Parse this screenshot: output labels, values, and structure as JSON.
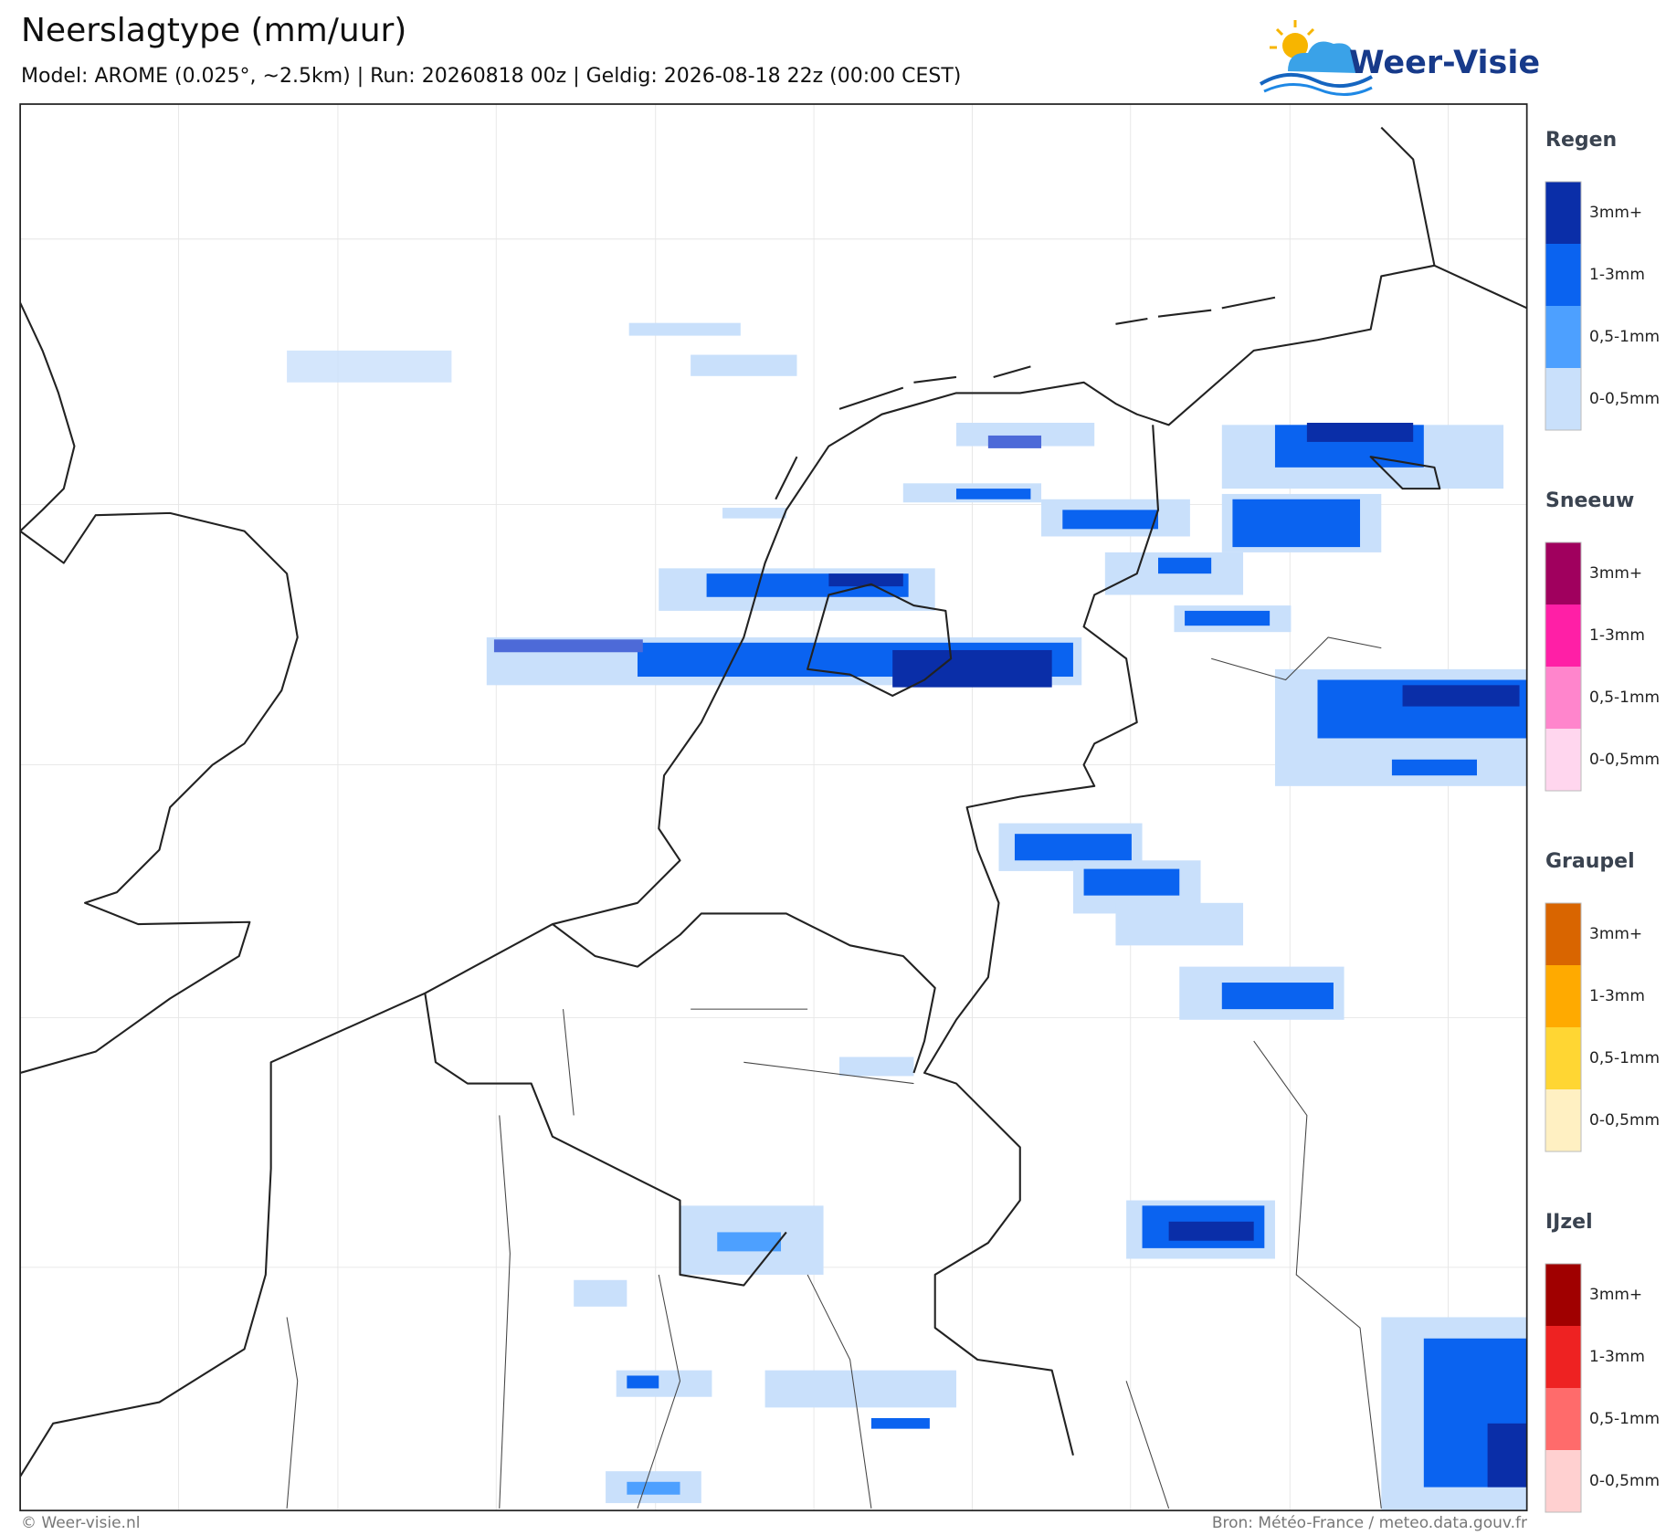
{
  "header": {
    "title": "Neerslagtype (mm/uur)",
    "subtitle": "Model: AROME (0.025°, ~2.5km)  |  Run: 20260818 00z  |  Geldig: 2026-08-18 22z (00:00 CEST)",
    "logo": "Weer-Visie"
  },
  "legend": [
    {
      "title": "Regen",
      "items": [
        {
          "label": "3mm+",
          "color": "#0a2ea8"
        },
        {
          "label": "1-3mm",
          "color": "#0a63f0"
        },
        {
          "label": "0,5-1mm",
          "color": "#4da0ff"
        },
        {
          "label": "0-0,5mm",
          "color": "#c9e0fb"
        }
      ]
    },
    {
      "title": "Sneeuw",
      "items": [
        {
          "label": "3mm+",
          "color": "#a0005e"
        },
        {
          "label": "1-3mm",
          "color": "#ff1fa6"
        },
        {
          "label": "0,5-1mm",
          "color": "#ff85cc"
        },
        {
          "label": "0-0,5mm",
          "color": "#ffd6ee"
        }
      ]
    },
    {
      "title": "Graupel",
      "items": [
        {
          "label": "3mm+",
          "color": "#d96500"
        },
        {
          "label": "1-3mm",
          "color": "#ffaa00"
        },
        {
          "label": "0,5-1mm",
          "color": "#ffd633"
        },
        {
          "label": "0-0,5mm",
          "color": "#fff0c2"
        }
      ]
    },
    {
      "title": "IJzel",
      "items": [
        {
          "label": "3mm+",
          "color": "#a00000"
        },
        {
          "label": "1-3mm",
          "color": "#ee2222"
        },
        {
          "label": "0,5-1mm",
          "color": "#ff6b6b"
        },
        {
          "label": "0-0,5mm",
          "color": "#ffd0d0"
        }
      ]
    }
  ],
  "footer": {
    "left": "© Weer-visie.nl",
    "right": "Bron: Météo-France / meteo.data.gouv.fr"
  }
}
